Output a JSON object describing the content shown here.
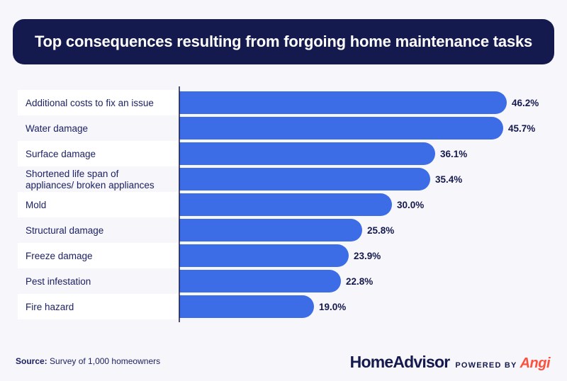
{
  "title": "Top consequences resulting from forgoing home maintenance tasks",
  "footer": {
    "source_label": "Source:",
    "source_text": "Survey of 1,000 homeowners",
    "brand_main": "HomeAdvisor",
    "brand_powered": "POWERED BY",
    "brand_angi": "Angi"
  },
  "colors": {
    "banner": "#151a4e",
    "bar": "#3d6de6",
    "row_alt": "#ffffff",
    "background": "#f7f6fb",
    "label_text": "#1c2262",
    "value_text": "#151a4e",
    "brand_accent": "#ff4f3d"
  },
  "chart_data": {
    "type": "bar",
    "orientation": "horizontal",
    "title": "Top consequences resulting from forgoing home maintenance tasks",
    "categories": [
      "Additional costs to fix an issue",
      "Water damage",
      "Surface damage",
      "Shortened life span of appliances/ broken appliances",
      "Mold",
      "Structural damage",
      "Freeze damage",
      "Pest infestation",
      "Fire hazard"
    ],
    "values": [
      46.2,
      45.7,
      36.1,
      35.4,
      30.0,
      25.8,
      23.9,
      22.8,
      19.0
    ],
    "value_labels": [
      "46.2%",
      "45.7%",
      "36.1%",
      "35.4%",
      "30.0%",
      "25.8%",
      "23.9%",
      "22.8%",
      "19.0%"
    ],
    "unit": "%",
    "xlim": [
      0,
      50
    ],
    "grid": false,
    "legend": "none"
  }
}
